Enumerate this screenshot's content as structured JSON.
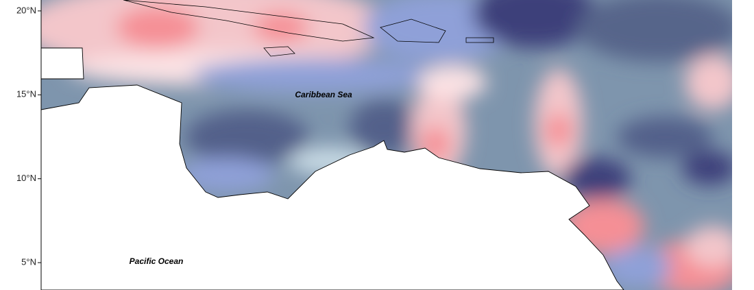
{
  "map": {
    "ylim": [
      3.37,
      20.65
    ],
    "yticks": [
      {
        "value": 20,
        "label": "20°N"
      },
      {
        "value": 15,
        "label": "15°N"
      },
      {
        "value": 10,
        "label": "10°N"
      },
      {
        "value": 5,
        "label": "5°N"
      }
    ],
    "annotations": [
      "Caribbean Sea",
      "Pacific Ocean"
    ]
  }
}
